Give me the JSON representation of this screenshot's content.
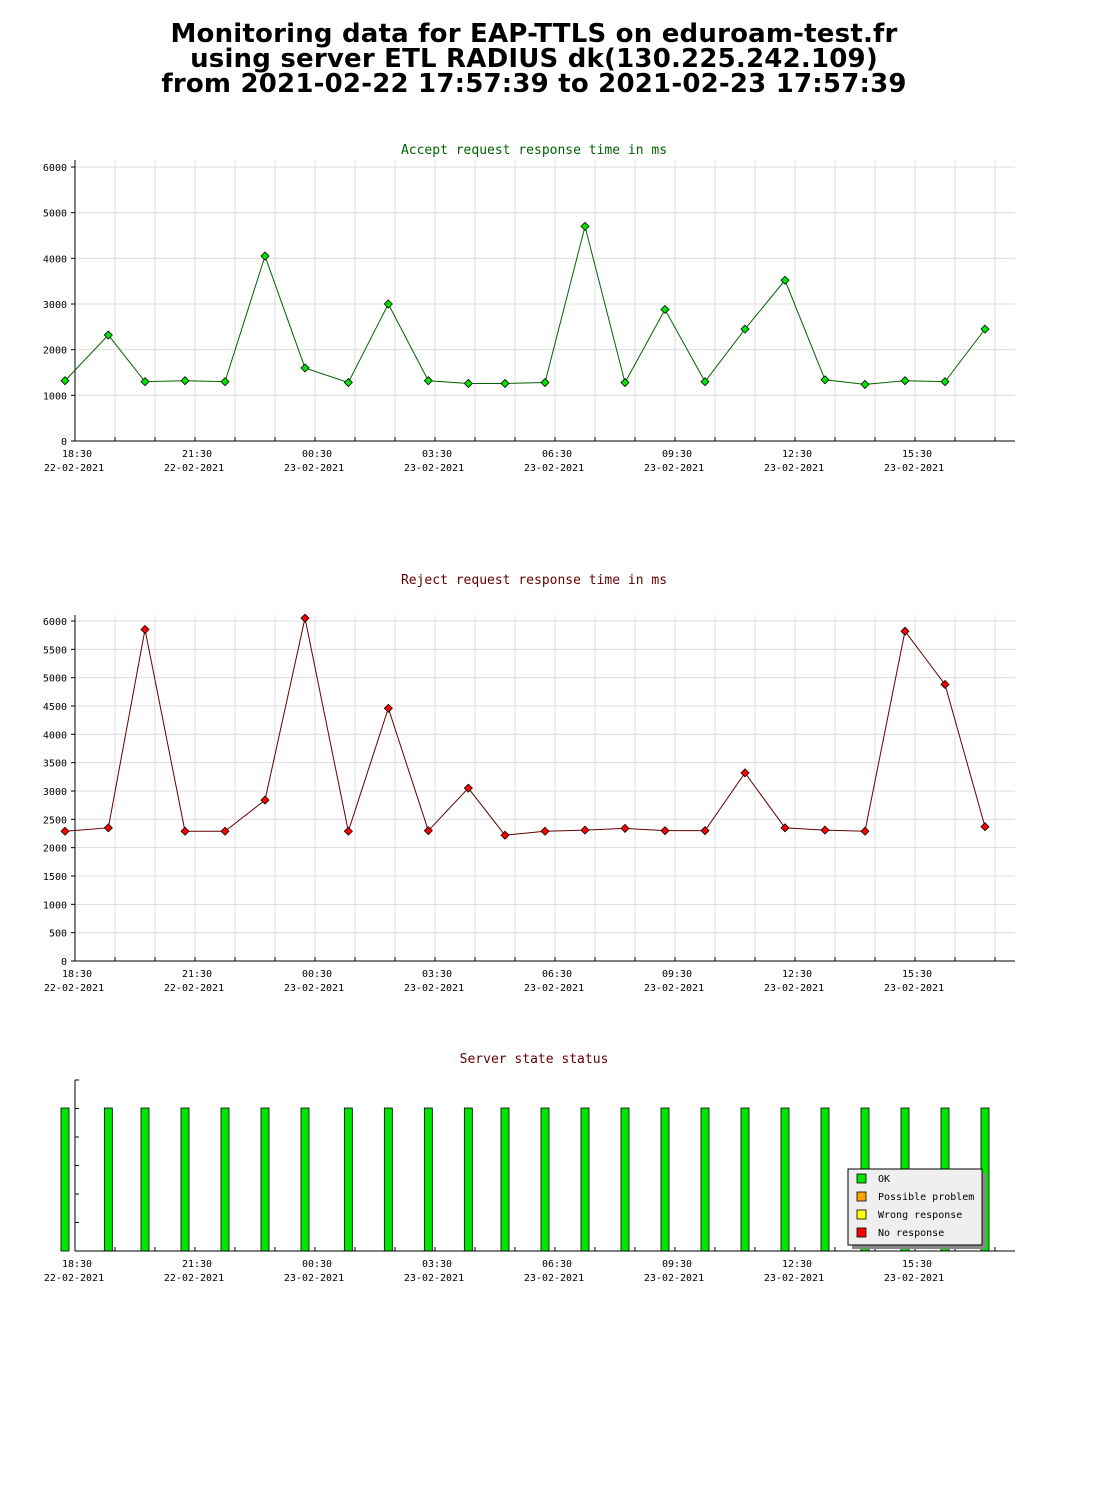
{
  "title": {
    "line1": "Monitoring data for EAP-TTLS on eduroam-test.fr",
    "line2": "using server ETL RADIUS dk(130.225.242.109)",
    "line3": "from 2021-02-22 17:57:39 to 2021-02-23 17:57:39"
  },
  "colors": {
    "accept_title": "#006400",
    "reject_title": "#640000",
    "status_title": "#640000",
    "accept_point": "#00e600",
    "accept_line": "#006400",
    "reject_point": "#ff0000",
    "reject_line": "#640000",
    "grid": "#dcdcdc",
    "ok": "#00e600",
    "possible_problem": "#ffa500",
    "wrong_response": "#ffff00",
    "no_response": "#ff0000"
  },
  "x_axis_labels": [
    {
      "time": "18:30",
      "date": "22-02-2021"
    },
    {
      "time": "21:30",
      "date": "22-02-2021"
    },
    {
      "time": "00:30",
      "date": "23-02-2021"
    },
    {
      "time": "03:30",
      "date": "23-02-2021"
    },
    {
      "time": "06:30",
      "date": "23-02-2021"
    },
    {
      "time": "09:30",
      "date": "23-02-2021"
    },
    {
      "time": "12:30",
      "date": "23-02-2021"
    },
    {
      "time": "15:30",
      "date": "23-02-2021"
    }
  ],
  "chart_data": [
    {
      "type": "line",
      "title": "Accept request response time in ms",
      "xlim": [
        "2021-02-22 18:10",
        "2021-02-23 17:55"
      ],
      "ylim": [
        0,
        6000
      ],
      "yticks": [
        0,
        1000,
        2000,
        3000,
        4000,
        5000,
        6000
      ],
      "grid": true,
      "x": [
        "2021-02-22 18:15",
        "2021-02-22 19:20",
        "2021-02-22 20:15",
        "2021-02-22 21:15",
        "2021-02-22 22:15",
        "2021-02-22 23:15",
        "2021-02-23 00:15",
        "2021-02-23 01:20",
        "2021-02-23 02:20",
        "2021-02-23 03:20",
        "2021-02-23 04:20",
        "2021-02-23 05:15",
        "2021-02-23 06:15",
        "2021-02-23 07:15",
        "2021-02-23 08:15",
        "2021-02-23 09:15",
        "2021-02-23 10:15",
        "2021-02-23 11:15",
        "2021-02-23 12:15",
        "2021-02-23 13:15",
        "2021-02-23 14:15",
        "2021-02-23 15:15",
        "2021-02-23 16:15",
        "2021-02-23 17:15"
      ],
      "values": [
        1320,
        2320,
        1300,
        1320,
        1300,
        4050,
        1600,
        1280,
        3000,
        1320,
        1260,
        1260,
        1280,
        4700,
        1280,
        2880,
        1300,
        2450,
        3520,
        1340,
        1240,
        1320,
        1300,
        2450
      ]
    },
    {
      "type": "line",
      "title": "Reject request response time in ms",
      "xlim": [
        "2021-02-22 18:10",
        "2021-02-23 17:55"
      ],
      "ylim": [
        0,
        6000
      ],
      "yticks": [
        0,
        500,
        1000,
        1500,
        2000,
        2500,
        3000,
        3500,
        4000,
        4500,
        5000,
        5500,
        6000
      ],
      "grid": true,
      "x": [
        "2021-02-22 18:15",
        "2021-02-22 19:20",
        "2021-02-22 20:15",
        "2021-02-22 21:15",
        "2021-02-22 22:15",
        "2021-02-22 23:15",
        "2021-02-23 00:15",
        "2021-02-23 01:20",
        "2021-02-23 02:20",
        "2021-02-23 03:20",
        "2021-02-23 04:20",
        "2021-02-23 05:15",
        "2021-02-23 06:15",
        "2021-02-23 07:15",
        "2021-02-23 08:15",
        "2021-02-23 09:15",
        "2021-02-23 10:15",
        "2021-02-23 11:15",
        "2021-02-23 12:15",
        "2021-02-23 13:15",
        "2021-02-23 14:15",
        "2021-02-23 15:15",
        "2021-02-23 16:15",
        "2021-02-23 17:15"
      ],
      "values": [
        2290,
        2350,
        5850,
        2290,
        2290,
        2840,
        6050,
        2290,
        4460,
        2300,
        3050,
        2220,
        2290,
        2310,
        2340,
        2300,
        2300,
        3320,
        2350,
        2310,
        2290,
        5820,
        4880,
        2370
      ]
    },
    {
      "type": "bar",
      "title": "Server state status",
      "xlim": [
        "2021-02-22 18:10",
        "2021-02-23 17:55"
      ],
      "grid": false,
      "x": [
        "2021-02-22 18:15",
        "2021-02-22 19:20",
        "2021-02-22 20:15",
        "2021-02-22 21:15",
        "2021-02-22 22:15",
        "2021-02-22 23:15",
        "2021-02-23 00:15",
        "2021-02-23 01:20",
        "2021-02-23 02:20",
        "2021-02-23 03:20",
        "2021-02-23 04:20",
        "2021-02-23 05:15",
        "2021-02-23 06:15",
        "2021-02-23 07:15",
        "2021-02-23 08:15",
        "2021-02-23 09:15",
        "2021-02-23 10:15",
        "2021-02-23 11:15",
        "2021-02-23 12:15",
        "2021-02-23 13:15",
        "2021-02-23 14:15",
        "2021-02-23 15:15",
        "2021-02-23 16:15",
        "2021-02-23 17:15"
      ],
      "status": [
        "OK",
        "OK",
        "OK",
        "OK",
        "OK",
        "OK",
        "OK",
        "OK",
        "OK",
        "OK",
        "OK",
        "OK",
        "OK",
        "OK",
        "OK",
        "OK",
        "OK",
        "OK",
        "OK",
        "OK",
        "OK",
        "OK",
        "OK",
        "OK"
      ],
      "legend": [
        "OK",
        "Possible problem",
        "Wrong response",
        "No response"
      ],
      "legend_position": "bottom-right"
    }
  ]
}
